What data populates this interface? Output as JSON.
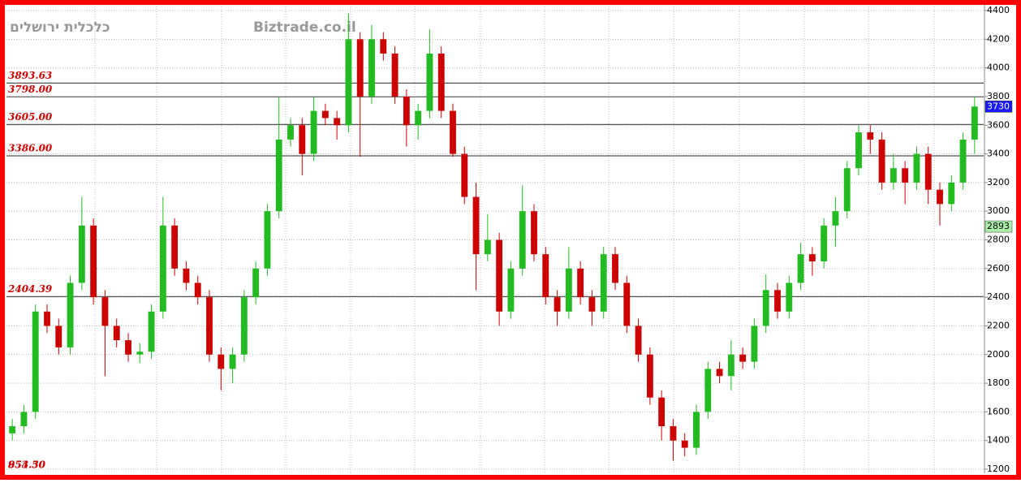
{
  "chart_data": {
    "type": "candlestick",
    "watermark_left": "כלכלית ירושלים",
    "watermark_center": "Biztrade.co.il",
    "ylim": [
      1200,
      4400
    ],
    "yticks": [
      1200,
      1400,
      1600,
      1800,
      2000,
      2200,
      2400,
      2600,
      2800,
      3000,
      3200,
      3400,
      3600,
      3800,
      4000,
      4200,
      4400
    ],
    "grid": true,
    "up_color": "#22bb22",
    "down_color": "#cc0000",
    "levels": [
      {
        "value": 3893.63,
        "label": "3893.63"
      },
      {
        "value": 3798.0,
        "label": "3798.00"
      },
      {
        "value": 3605.0,
        "label": "3605.00"
      },
      {
        "value": 3386.0,
        "label": "3386.00"
      },
      {
        "value": 2404.39,
        "label": "2404.39"
      }
    ],
    "bottom_labels": [
      "954.30",
      "853.50"
    ],
    "last_price": 3730,
    "last_price_color": "#1a1aff",
    "marker_price": 2893,
    "marker_color": "#aaf0aa",
    "candles": [
      [
        1450,
        1550,
        1400,
        1500
      ],
      [
        1500,
        1650,
        1450,
        1600
      ],
      [
        1600,
        2350,
        1550,
        2300
      ],
      [
        2300,
        2350,
        2150,
        2200
      ],
      [
        2200,
        2250,
        2000,
        2050
      ],
      [
        2050,
        2550,
        2000,
        2500
      ],
      [
        2500,
        3100,
        2450,
        2900
      ],
      [
        2900,
        2950,
        2350,
        2400
      ],
      [
        2400,
        2450,
        1850,
        2200
      ],
      [
        2200,
        2250,
        2050,
        2100
      ],
      [
        2100,
        2150,
        1950,
        2000
      ],
      [
        2000,
        2080,
        1940,
        2020
      ],
      [
        2020,
        2350,
        1970,
        2300
      ],
      [
        2300,
        3100,
        2250,
        2900
      ],
      [
        2900,
        2950,
        2550,
        2600
      ],
      [
        2600,
        2650,
        2450,
        2500
      ],
      [
        2500,
        2550,
        2350,
        2400
      ],
      [
        2400,
        2450,
        1950,
        2000
      ],
      [
        2000,
        2050,
        1750,
        1900
      ],
      [
        1900,
        2050,
        1800,
        2000
      ],
      [
        2000,
        2450,
        1950,
        2400
      ],
      [
        2400,
        2650,
        2350,
        2600
      ],
      [
        2600,
        3050,
        2550,
        3000
      ],
      [
        3000,
        3800,
        2950,
        3500
      ],
      [
        3500,
        3650,
        3450,
        3600
      ],
      [
        3600,
        3650,
        3250,
        3400
      ],
      [
        3400,
        3800,
        3350,
        3700
      ],
      [
        3700,
        3750,
        3600,
        3650
      ],
      [
        3650,
        3700,
        3500,
        3600
      ],
      [
        3600,
        4380,
        3550,
        4200
      ],
      [
        4200,
        4250,
        3380,
        3800
      ],
      [
        3800,
        4300,
        3750,
        4200
      ],
      [
        4200,
        4250,
        4050,
        4100
      ],
      [
        4100,
        4150,
        3750,
        3800
      ],
      [
        3800,
        3850,
        3450,
        3600
      ],
      [
        3600,
        3750,
        3500,
        3700
      ],
      [
        3700,
        4270,
        3650,
        4100
      ],
      [
        4100,
        4150,
        3650,
        3700
      ],
      [
        3700,
        3750,
        3380,
        3400
      ],
      [
        3400,
        3450,
        3050,
        3100
      ],
      [
        3100,
        3200,
        2450,
        2700
      ],
      [
        2700,
        2980,
        2650,
        2800
      ],
      [
        2800,
        2850,
        2200,
        2300
      ],
      [
        2300,
        2650,
        2250,
        2600
      ],
      [
        2600,
        3180,
        2550,
        3000
      ],
      [
        3000,
        3050,
        2650,
        2700
      ],
      [
        2700,
        2750,
        2350,
        2400
      ],
      [
        2400,
        2450,
        2200,
        2300
      ],
      [
        2300,
        2750,
        2250,
        2600
      ],
      [
        2600,
        2650,
        2350,
        2400
      ],
      [
        2400,
        2450,
        2200,
        2300
      ],
      [
        2300,
        2750,
        2250,
        2700
      ],
      [
        2700,
        2750,
        2450,
        2500
      ],
      [
        2500,
        2550,
        2150,
        2200
      ],
      [
        2200,
        2250,
        1950,
        2000
      ],
      [
        2000,
        2050,
        1650,
        1700
      ],
      [
        1700,
        1750,
        1400,
        1500
      ],
      [
        1500,
        1550,
        1260,
        1400
      ],
      [
        1400,
        1450,
        1290,
        1350
      ],
      [
        1350,
        1650,
        1300,
        1600
      ],
      [
        1600,
        1950,
        1550,
        1900
      ],
      [
        1900,
        1950,
        1800,
        1850
      ],
      [
        1850,
        2100,
        1750,
        2000
      ],
      [
        2000,
        2050,
        1900,
        1950
      ],
      [
        1950,
        2250,
        1900,
        2200
      ],
      [
        2200,
        2560,
        2150,
        2450
      ],
      [
        2450,
        2500,
        2250,
        2300
      ],
      [
        2300,
        2550,
        2250,
        2500
      ],
      [
        2500,
        2780,
        2450,
        2700
      ],
      [
        2700,
        2750,
        2550,
        2650
      ],
      [
        2650,
        2950,
        2600,
        2900
      ],
      [
        2900,
        3100,
        2750,
        3000
      ],
      [
        3000,
        3350,
        2950,
        3300
      ],
      [
        3300,
        3600,
        3250,
        3550
      ],
      [
        3550,
        3600,
        3400,
        3500
      ],
      [
        3500,
        3550,
        3150,
        3200
      ],
      [
        3200,
        3400,
        3150,
        3300
      ],
      [
        3300,
        3350,
        3050,
        3200
      ],
      [
        3200,
        3450,
        3150,
        3400
      ],
      [
        3400,
        3450,
        3050,
        3150
      ],
      [
        3150,
        3200,
        2900,
        3050
      ],
      [
        3050,
        3250,
        3000,
        3200
      ],
      [
        3200,
        3550,
        3150,
        3500
      ],
      [
        3500,
        3800,
        3400,
        3730
      ]
    ]
  }
}
